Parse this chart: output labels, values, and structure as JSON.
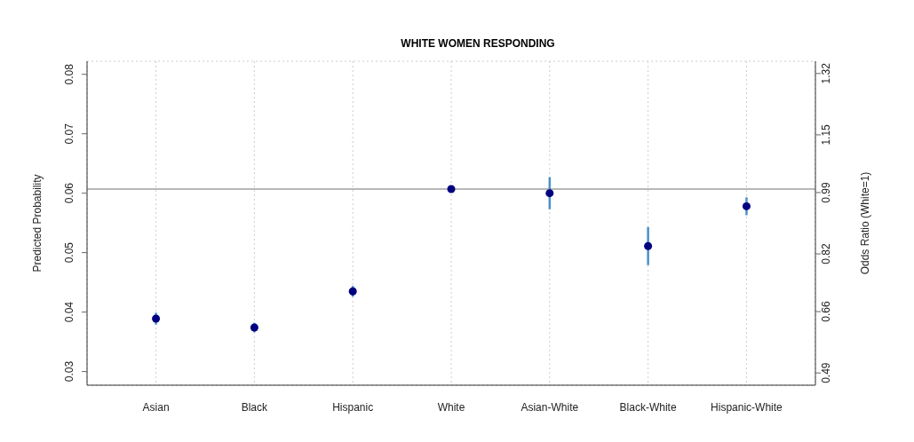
{
  "chart_data": {
    "type": "scatter",
    "title": "WHITE WOMEN RESPONDING",
    "ylabel": "Predicted Probability",
    "y2label": "Odds Ratio (White=1)",
    "categories": [
      "Asian",
      "Black",
      "Hispanic",
      "White",
      "Asian-White",
      "Black-White",
      "Hispanic-White"
    ],
    "series": [
      {
        "color": "#000080",
        "values": [
          0.0389,
          0.0374,
          0.0435,
          0.0607,
          0.06,
          0.0511,
          0.0578
        ],
        "errors": [
          0.001,
          0.0008,
          0.0009,
          null,
          0.0027,
          0.0032,
          0.0015
        ]
      }
    ],
    "ylim": [
      0.0277,
      0.0822
    ],
    "yticks": [
      0.03,
      0.04,
      0.05,
      0.06,
      0.07,
      0.08
    ],
    "y2lim": [
      0.456,
      1.354
    ],
    "y2ticks": [
      0.49,
      0.66,
      0.82,
      0.99,
      1.15,
      1.32
    ],
    "ref_lines": [
      {
        "axis": "y",
        "value": 0.0607,
        "color": "#a0a0a0"
      }
    ],
    "grid": true,
    "marker": "circle"
  }
}
